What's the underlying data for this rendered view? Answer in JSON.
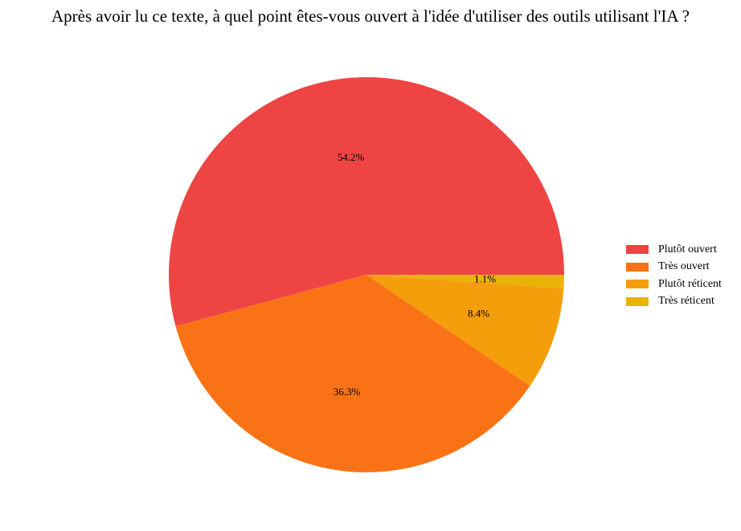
{
  "chart_data": {
    "type": "pie",
    "title": "Après avoir lu ce texte, à quel point êtes-vous ouvert à l'idée d'utiliser des outils utilisant l'IA ?",
    "categories": [
      "Plutôt ouvert",
      "Très ouvert",
      "Plutôt réticent",
      "Très réticent"
    ],
    "values": [
      54.2,
      36.3,
      8.4,
      1.1
    ],
    "labels": [
      "54.2%",
      "36.3%",
      "8.4%",
      "1.1%"
    ],
    "colors": [
      "#ef4444",
      "#f97316",
      "#f59e0b",
      "#eab308"
    ],
    "start_angle_deg": 0,
    "direction": "counterclockwise",
    "legend_position": "right"
  }
}
